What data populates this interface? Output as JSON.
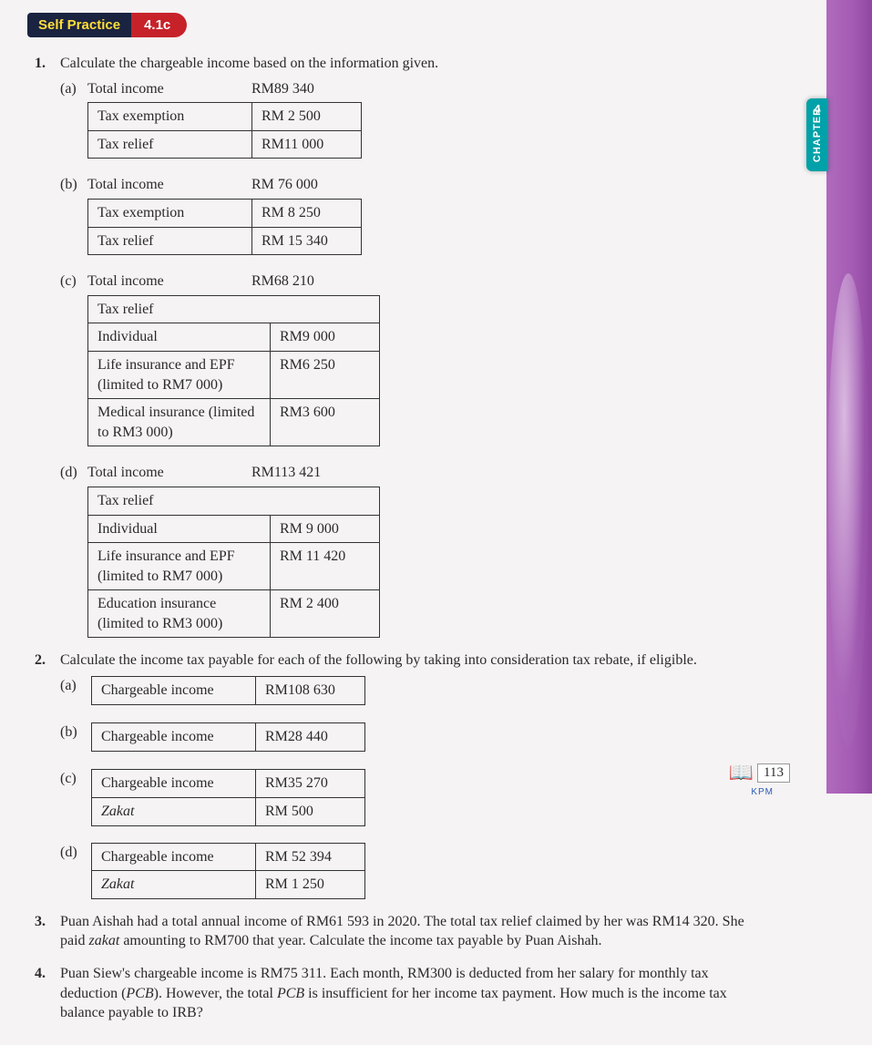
{
  "badge": {
    "left": "Self Practice",
    "right": "4.1c"
  },
  "chapter_tab": {
    "label": "CHAPTER",
    "num": "4"
  },
  "page_number": "113",
  "footer_abbrev": "KPM",
  "q1": {
    "prompt": "Calculate the chargeable income based on the information given.",
    "a": {
      "label": "(a)",
      "head_label": "Total income",
      "head_value": "RM89 340",
      "rows": [
        {
          "l": "Tax exemption",
          "v": "RM  2 500"
        },
        {
          "l": "Tax relief",
          "v": "RM11 000"
        }
      ]
    },
    "b": {
      "label": "(b)",
      "head_label": "Total income",
      "head_value": "RM 76 000",
      "rows": [
        {
          "l": "Tax exemption",
          "v": "RM  8 250"
        },
        {
          "l": "Tax relief",
          "v": "RM 15 340"
        }
      ]
    },
    "c": {
      "label": "(c)",
      "head_label": "Total income",
      "head_value": "RM68 210",
      "section": "Tax relief",
      "rows": [
        {
          "l": "Individual",
          "v": "RM9 000"
        },
        {
          "l": "Life insurance and EPF (limited to RM7 000)",
          "v": "RM6 250"
        },
        {
          "l": "Medical insurance (limited to RM3 000)",
          "v": "RM3 600"
        }
      ]
    },
    "d": {
      "label": "(d)",
      "head_label": "Total income",
      "head_value": "RM113 421",
      "section": "Tax relief",
      "rows": [
        {
          "l": "Individual",
          "v": "RM  9 000"
        },
        {
          "l": "Life insurance and EPF (limited to RM7 000)",
          "v": "RM 11 420"
        },
        {
          "l": "Education insurance (limited to RM3 000)",
          "v": "RM  2 400"
        }
      ]
    }
  },
  "q2": {
    "prompt": "Calculate the income tax payable for each of the following by taking into consideration tax rebate, if eligible.",
    "a": {
      "label": "(a)",
      "rows": [
        {
          "l": "Chargeable income",
          "v": "RM108 630"
        }
      ]
    },
    "b": {
      "label": "(b)",
      "rows": [
        {
          "l": "Chargeable income",
          "v": "RM28 440"
        }
      ]
    },
    "c": {
      "label": "(c)",
      "rows": [
        {
          "l": "Chargeable income",
          "v": "RM35 270"
        },
        {
          "l": "Zakat",
          "v": "RM     500",
          "italic": true
        }
      ]
    },
    "d": {
      "label": "(d)",
      "rows": [
        {
          "l": "Chargeable income",
          "v": "RM 52 394"
        },
        {
          "l": "Zakat",
          "v": "RM  1 250",
          "italic": true
        }
      ]
    }
  },
  "q3": {
    "text_parts": [
      "Puan Aishah had a total annual income of RM61 593 in 2020. The total tax relief claimed by her was RM14 320. She paid ",
      "zakat",
      " amounting to RM700 that year. Calculate the income tax payable by Puan Aishah."
    ]
  },
  "q4": {
    "text_parts": [
      "Puan Siew's chargeable income is RM75 311. Each month, RM300 is deducted from her salary for monthly tax deduction (",
      "PCB",
      "). However, the total ",
      "PCB",
      " is insufficient for her income tax payment. How much is the income tax balance payable to IRB?"
    ]
  }
}
